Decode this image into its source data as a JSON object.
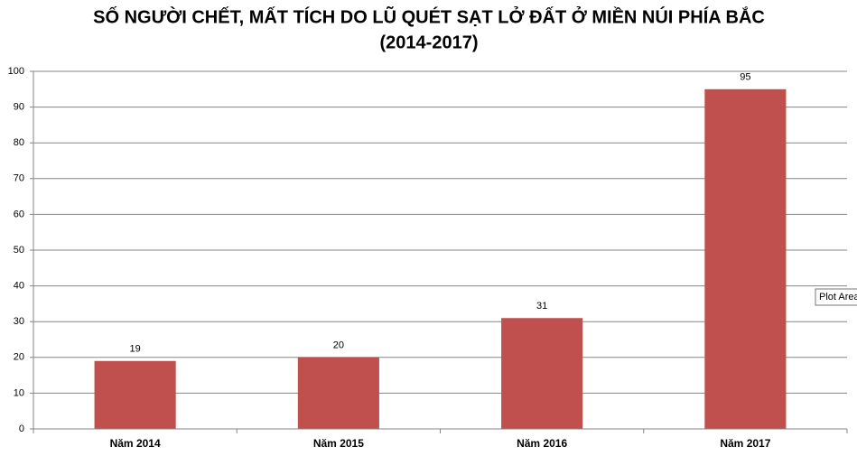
{
  "chart_data": {
    "type": "bar",
    "title": [
      "SỐ NGƯỜI CHẾT, MẤT TÍCH DO LŨ QUÉT SẠT LỞ ĐẤT Ở MIỀN NÚI PHÍA BẮC",
      "(2014-2017)"
    ],
    "categories": [
      "Năm 2014",
      "Năm 2015",
      "Năm 2016",
      "Năm 2017"
    ],
    "values": [
      19,
      20,
      31,
      95
    ],
    "color": "#c0504d",
    "ylim": [
      0,
      100
    ],
    "yticks": [
      0,
      10,
      20,
      30,
      40,
      50,
      60,
      70,
      80,
      90,
      100
    ],
    "grid": true,
    "tooltip": "Plot Area"
  }
}
